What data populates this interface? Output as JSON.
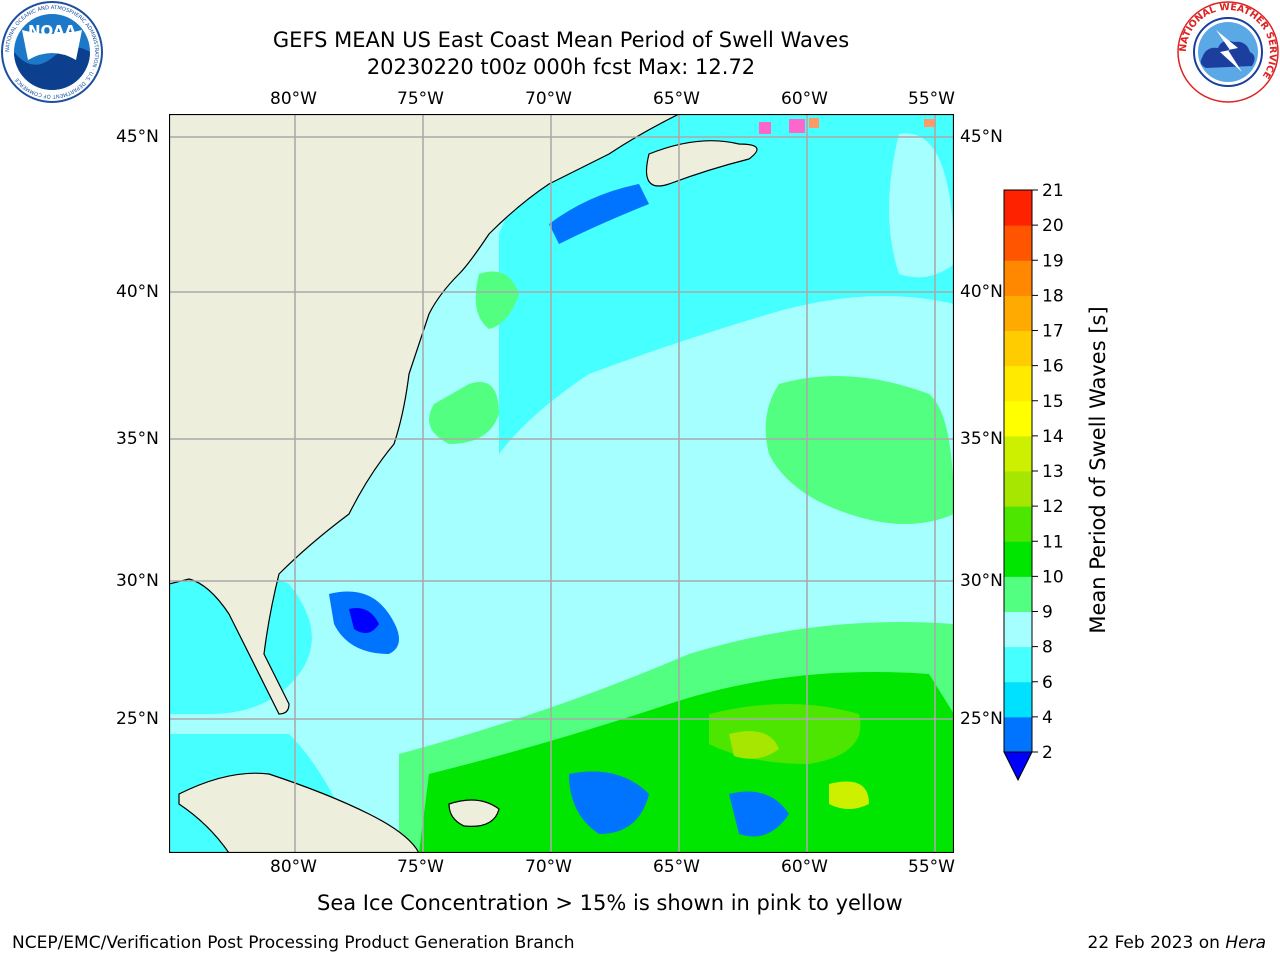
{
  "header": {
    "title_line1": "GEFS MEAN US East Coast Mean Period of Swell Waves",
    "title_line2": "20230220 t00z 000h fcst   Max: 12.72"
  },
  "logos": {
    "left": "noaa-logo",
    "right": "national-weather-service-logo",
    "noaa_text": "NOAA",
    "noaa_ring_text": "NATIONAL OCEANIC AND ATMOSPHERIC ADMINISTRATION · U.S. DEPARTMENT OF COMMERCE",
    "nws_ring_text": "NATIONAL WEATHER SERVICE"
  },
  "map": {
    "lon_ticks": [
      "80°W",
      "75°W",
      "70°W",
      "65°W",
      "60°W",
      "55°W"
    ],
    "lat_ticks": [
      "45°N",
      "40°N",
      "35°N",
      "30°N",
      "25°N"
    ],
    "land_color": "#eeeedc",
    "coast_color": "#000000",
    "grid_color": "#aaaaaa"
  },
  "colorbar": {
    "label": "Mean Period of Swell Waves [s]",
    "levels": [
      "2",
      "4",
      "6",
      "8",
      "9",
      "10",
      "11",
      "12",
      "13",
      "14",
      "15",
      "16",
      "17",
      "18",
      "19",
      "20",
      "21"
    ],
    "colors": [
      "#0073ff",
      "#00e0ff",
      "#46ffff",
      "#a6ffff",
      "#53ff80",
      "#00e600",
      "#4ce600",
      "#a6e600",
      "#ccf000",
      "#ffff00",
      "#ffea00",
      "#ffcc00",
      "#ffaa00",
      "#ff8800",
      "#ff5500",
      "#ff2200"
    ],
    "extend_color": "#0000ff"
  },
  "footer": {
    "ice_note": "Sea Ice Concentration > 15% is shown in pink to yellow",
    "credit": "NCEP/EMC/Verification Post Processing Product Generation Branch",
    "date_prefix": "22 Feb 2023 on ",
    "date_host": "Hera"
  }
}
